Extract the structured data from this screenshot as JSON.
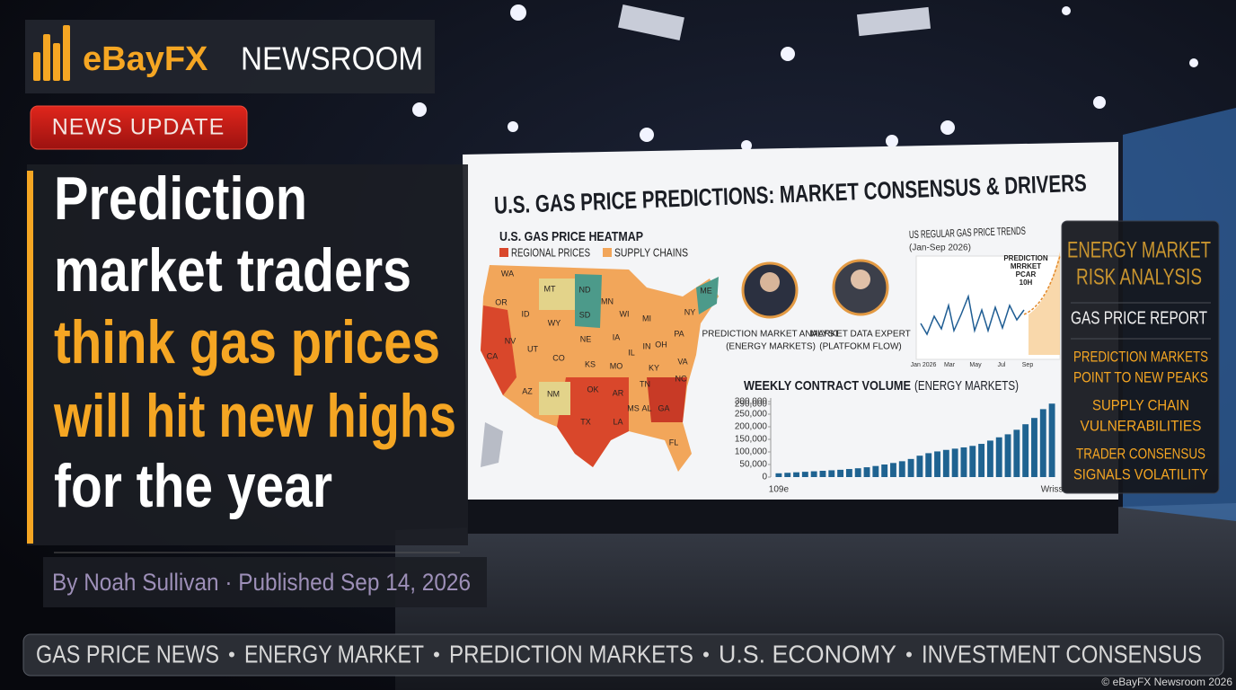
{
  "header": {
    "brand": "eBayFX",
    "brand_suffix": "NEWSROOM"
  },
  "badge": "NEWS UPDATE",
  "headline": [
    {
      "text": "Prediction",
      "color": "#ffffff"
    },
    {
      "text": "market traders",
      "color": "#ffffff"
    },
    {
      "text": "think gas prices",
      "color": "#f5a623"
    },
    {
      "text": "will hit new highs",
      "color": "#f5a623"
    },
    {
      "text": "for the year",
      "color": "#ffffff"
    }
  ],
  "byline": "By Noah Sullivan · Published Sep 14, 2026",
  "screen": {
    "title": "U.S. GAS PRICE PREDICTIONS: MARKET CONSENSUS & DRIVERS",
    "heatmap_title": "U.S. GAS PRICE HEATMAP",
    "heatmap_legend": [
      {
        "label": "REGIONAL PRICES",
        "color": "#d9472b"
      },
      {
        "label": "SUPPLY CHAINS",
        "color": "#f2a65a"
      }
    ],
    "states": [
      "WA",
      "OR",
      "MT",
      "ND",
      "ID",
      "WY",
      "SD",
      "MN",
      "CA",
      "NV",
      "UT",
      "CO",
      "NE",
      "IA",
      "KS",
      "MO",
      "AZ",
      "NM",
      "OK",
      "AR",
      "TX",
      "LA",
      "MS",
      "AL",
      "GA",
      "FL",
      "IL",
      "IN",
      "OH",
      "KY",
      "TN",
      "NC",
      "VA",
      "PA",
      "NY",
      "ME",
      "WI",
      "MI"
    ],
    "people": [
      {
        "label_lines": [
          "PREDICTION MARKET ANALYST",
          "(ENERGY MARKETS)"
        ]
      },
      {
        "label_lines": [
          "MARKET DATA EXPERT",
          "(PLATFOKM FLOW)"
        ]
      }
    ],
    "trend_title": "US REGULAR GAS PRICE TRENDS",
    "trend_subtitle": "(Jan-Sep 2026)",
    "trend_annotation": [
      "PREDICTION",
      "MRRKET",
      "PCAR",
      "10H"
    ],
    "trend_x_labels": [
      "Jan 2026",
      "Mar",
      "May",
      "Jul",
      "Sep"
    ]
  },
  "chart_data": {
    "type": "bar",
    "title": "WEEKLY CONTRACT VOLUME",
    "subtitle": "(ENERGY MARKETS)",
    "color": "#1f6391",
    "categories": [
      "109e",
      null,
      null,
      null,
      null,
      null,
      null,
      null,
      null,
      null,
      null,
      null,
      null,
      null,
      null,
      null,
      null,
      null,
      null,
      null,
      null,
      null,
      null,
      null,
      null,
      null,
      null,
      null,
      null,
      null,
      null,
      "Wriss"
    ],
    "values": [
      15000,
      17000,
      19000,
      21000,
      23000,
      25000,
      27000,
      29000,
      32000,
      35000,
      39000,
      44000,
      50000,
      56000,
      63000,
      72000,
      85000,
      95000,
      102000,
      108000,
      113000,
      118000,
      124000,
      132000,
      145000,
      158000,
      170000,
      188000,
      210000,
      235000,
      270000,
      292000
    ],
    "ylim": [
      0,
      300000
    ],
    "yticks": [
      0,
      {
        "value": 50000,
        "label": "50,000"
      },
      {
        "value": 100000,
        "label": "100,000"
      },
      {
        "value": 150000,
        "label": "150,000"
      },
      {
        "value": 200000,
        "label": "200,000"
      },
      {
        "value": 250000,
        "label": "250,000"
      },
      {
        "value": 290000,
        "label": "290,000"
      },
      {
        "value": 300000,
        "label": "300,000"
      }
    ]
  },
  "side_panel": {
    "title_lines": [
      "ENERGY MARKET",
      "RISK ANALYSIS"
    ],
    "subtitle": "GAS PRICE REPORT",
    "items": [
      [
        "PREDICTION MARKETS",
        "POINT TO NEW PEAKS"
      ],
      [
        "SUPPLY CHAIN",
        "VULNERABILITIES"
      ],
      [
        "TRADER CONSENSUS",
        "SIGNALS VOLATILITY"
      ]
    ]
  },
  "ticker": {
    "items": [
      "GAS PRICE NEWS",
      "ENERGY MARKET",
      "PREDICTION MARKETS",
      "U.S. ECONOMY",
      "INVESTMENT CONSENSUS"
    ],
    "separator": "•"
  },
  "copyright": "© eBayFX Newsroom 2026"
}
